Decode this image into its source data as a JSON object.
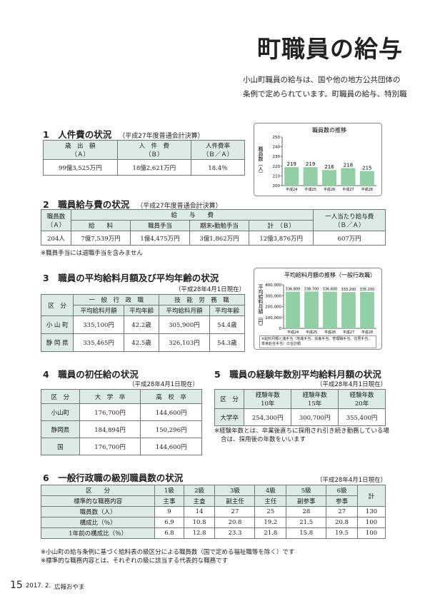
{
  "header": {
    "title": "町職員の給与",
    "intro": [
      "小山町職員の給与は、国や他の地方公共団体の",
      "条例で定められています。町職員の給与、特別職"
    ]
  },
  "s1": {
    "heading": "1　人件費の状況",
    "note": "（平成27年度普通会計決算）",
    "table": {
      "header": [
        [
          "歳　出　額",
          "（Ａ）"
        ],
        [
          "人　件　費",
          "（Ｂ）"
        ],
        [
          "人件費率",
          "（Ｂ／Ａ）"
        ]
      ],
      "rows": [
        [
          "99億3,525万円",
          "18億2,621万円",
          "18.4％"
        ]
      ]
    }
  },
  "s2": {
    "heading": "2　職員給与費の状況",
    "note": "（平成27年度普通会計決算）",
    "table": {
      "header": {
        "staff": [
          "職員数",
          "（Ａ）"
        ],
        "group": "給　　与　　費",
        "cols": [
          "給　　料",
          "職員手当",
          "期末・勤勉手当",
          "計　（Ｂ）"
        ],
        "per": [
          "一人当たり給与費",
          "（Ｂ／Ａ）"
        ]
      },
      "rows": [
        [
          "204人",
          "7億7,539万円",
          "1億4,475万円",
          "3億1,862万円",
          "12億3,876万円",
          "607万円"
        ]
      ]
    },
    "footnote": "※職員手当には退職手当を含みません"
  },
  "s3": {
    "heading": "3　職員の平均給料月額及び平均年齢の状況",
    "note": "（平成28年4月1日現在）",
    "table": {
      "header": {
        "kubun": "区　分",
        "groups": [
          "一　般　行　政　職",
          "技　能　労　務　職"
        ],
        "cols": [
          "平均給料月額",
          "平均年齢",
          "平均給料月額",
          "平均年齢"
        ]
      },
      "rows": [
        [
          "小 山 町",
          "335,100円",
          "42.2歳",
          "305,900円",
          "54.4歳"
        ],
        [
          "静 岡 県",
          "335,465円",
          "42.5歳",
          "326,103円",
          "54.3歳"
        ]
      ]
    }
  },
  "s4": {
    "heading": "4　職員の初任給の状況",
    "note": "（平成28年4月1日現在）",
    "table": {
      "header": [
        "区　分",
        "大　学　卒",
        "高　校　卒"
      ],
      "rows": [
        [
          "小山町",
          "176,700円",
          "144,600円"
        ],
        [
          "静岡県",
          "184,894円",
          "150,296円"
        ],
        [
          "国",
          "176,700円",
          "144,600円"
        ]
      ]
    }
  },
  "s5": {
    "heading": "5　職員の経験年数別平均給料月額の状況",
    "note": "（平成28年4月1日現在）",
    "table": {
      "header": [
        [
          "区　分"
        ],
        [
          "経験年数",
          "10年"
        ],
        [
          "経験年数",
          "15年"
        ],
        [
          "経験年数",
          "20年"
        ]
      ],
      "rows": [
        [
          "大学卒",
          "254,300円",
          "300,700円",
          "355,400円"
        ]
      ]
    },
    "footnote": "※経験年数とは、卒業後直ちに採用され引き続き勤務している場合は、採用後の年数をいいます"
  },
  "s6": {
    "heading": "6　一般行政職の級別職員数の状況",
    "note": "（平成28年4月1日現在）",
    "table": {
      "header": [
        [
          "区　　分",
          "1級",
          "2級",
          "3級",
          "4級",
          "5級",
          "6級",
          "計"
        ],
        [
          "標準的な職務内容",
          "主事",
          "主査",
          "副主任",
          "主任",
          "副参事",
          "参事"
        ]
      ],
      "rows": [
        [
          "職員数（人）",
          "9",
          "14",
          "27",
          "25",
          "28",
          "27",
          "130"
        ],
        [
          "構成比（％）",
          "6.9",
          "10.8",
          "20.8",
          "19.2",
          "21.5",
          "20.8",
          "100"
        ],
        [
          "1年前の構成比（％）",
          "6.8",
          "12.8",
          "23.3",
          "21.8",
          "15.8",
          "19.5",
          "100"
        ]
      ]
    },
    "footnotes": [
      "※小山町の給与条例に基づく給料表の級区分による職員数（国で定める福祉職等を除く）です",
      "※標準的な職務内容とは、それぞれの級に該当する代表的な職務です"
    ]
  },
  "chart_data": [
    {
      "type": "bar",
      "title": "職員数の推移",
      "y_label": "職員数（人）",
      "categories": [
        "平成24",
        "平成25",
        "平成26",
        "平成27",
        "平成28"
      ],
      "values": [
        219,
        219,
        216,
        218,
        215
      ],
      "ylim": [
        200,
        250
      ],
      "yticks": [
        200,
        210,
        220,
        230,
        240,
        250
      ],
      "color": "#93cfa6"
    },
    {
      "type": "bar",
      "title": "平均給料月額の推移（一般行政職）",
      "y_label": "平均給料月額（円）",
      "categories": [
        "平成24",
        "平成25",
        "平成26",
        "平成27",
        "平成28"
      ],
      "values": [
        336800,
        338700,
        336600,
        333200,
        335100
      ],
      "value_labels": [
        "336,800",
        "338,700",
        "336,600",
        "333,200",
        "335,100"
      ],
      "ylim": [
        0,
        400000
      ],
      "yticks": [
        0,
        {
          "value": 100000,
          "label": "100,000"
        },
        {
          "value": 200000,
          "label": "200,000"
        },
        {
          "value": 300000,
          "label": "300,000"
        },
        {
          "value": 400000,
          "label": "400,000"
        }
      ],
      "color": "#93cfa6",
      "note": "※給料月額と諸手当（地域手当、扶養手当、管理職手当、住居手当、単身赴任手当）の合計額"
    }
  ],
  "footer": {
    "page": "15",
    "date": "2017. 2.",
    "name": "広報おやま"
  }
}
